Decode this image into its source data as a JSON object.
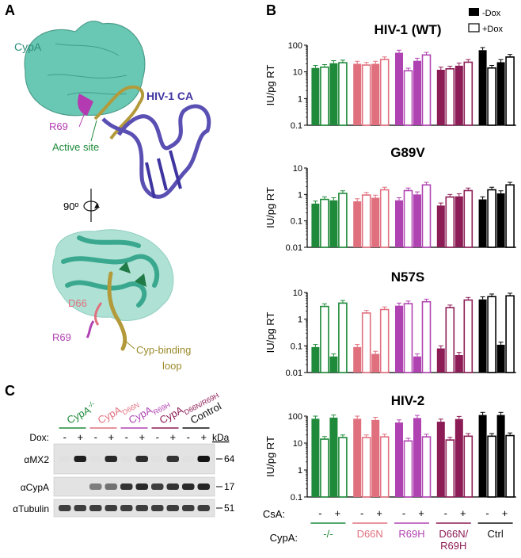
{
  "panels": {
    "a": "A",
    "b": "B",
    "c": "C"
  },
  "structure": {
    "cypa": "CypA",
    "ca": "HIV-1 CA",
    "r69_top": "R69",
    "active_site": "Active site",
    "rotation": "90º",
    "d66": "D66",
    "r69_bottom": "R69",
    "loop_line1": "Cyp-binding",
    "loop_line2": "loop"
  },
  "blot": {
    "groups": [
      {
        "label": "CypA",
        "sup": "-/-",
        "sub": "",
        "color": "#1f8a3a"
      },
      {
        "label": "CypA",
        "sup": "",
        "sub": "D66N",
        "color": "#e0707e"
      },
      {
        "label": "CypA",
        "sup": "",
        "sub": "R69H",
        "color": "#b043b2"
      },
      {
        "label": "CypA",
        "sup": "",
        "sub": "D66N/R69H",
        "color": "#8c1c55"
      },
      {
        "label": "Control",
        "sup": "",
        "sub": "",
        "color": "#111111"
      }
    ],
    "dox_label": "Dox:",
    "dox_signs": [
      "-",
      "+",
      "-",
      "+",
      "-",
      "+",
      "-",
      "+",
      "-",
      "+"
    ],
    "kda_label": "kDa",
    "rows": [
      {
        "label": "αMX2",
        "kda": "64",
        "bands": [
          0.03,
          0.95,
          0.03,
          0.9,
          0.03,
          0.88,
          0.03,
          0.85,
          0.03,
          1.0
        ]
      },
      {
        "label": "αCypA",
        "kda": "17",
        "bands": [
          0.0,
          0.0,
          0.5,
          0.55,
          0.85,
          0.9,
          0.8,
          0.85,
          0.9,
          0.92
        ]
      },
      {
        "label": "αTubulin",
        "kda": "51",
        "bands": [
          0.8,
          0.8,
          0.8,
          0.8,
          0.8,
          0.8,
          0.8,
          0.8,
          0.8,
          0.8
        ]
      }
    ]
  },
  "legend": {
    "minus": "-Dox",
    "plus": "+Dox"
  },
  "axis": {
    "csa_label": "CsA:",
    "cypa_label": "CypA:",
    "csa_signs": [
      "-",
      "+",
      "-",
      "+",
      "-",
      "+",
      "-",
      "+",
      "-",
      "+"
    ]
  },
  "group_labels": [
    {
      "lines": [
        "-/-"
      ],
      "color": "#1f8a3a"
    },
    {
      "lines": [
        "D66N"
      ],
      "color": "#e0707e"
    },
    {
      "lines": [
        "R69H"
      ],
      "color": "#b043b2"
    },
    {
      "lines": [
        "D66N/",
        "R69H"
      ],
      "color": "#8c1c55"
    },
    {
      "lines": [
        "Ctrl"
      ],
      "color": "#111111"
    }
  ],
  "chart_data": [
    {
      "type": "bar",
      "title": "HIV-1 (WT)",
      "ylabel": "IU/pg RT",
      "yscale": "log",
      "ylim": [
        0.1,
        100
      ],
      "yticks": [
        "100",
        "10",
        "1",
        "0.1"
      ],
      "group_colors": [
        "#1f8a3a",
        "#e0707e",
        "#b043b2",
        "#8c1c55",
        "#000000"
      ],
      "bars": [
        {
          "dox": "-",
          "values": [
            14,
            20,
            52,
            12,
            65
          ]
        },
        {
          "dox": "+",
          "values": [
            15,
            18,
            11,
            13,
            14
          ]
        },
        {
          "dox": "-",
          "values": [
            21,
            20,
            26,
            17,
            23
          ]
        },
        {
          "dox": "+",
          "values": [
            22,
            29,
            43,
            23,
            36
          ]
        }
      ]
    },
    {
      "type": "bar",
      "title": "G89V",
      "ylabel": "IU/pg RT",
      "yscale": "log",
      "ylim": [
        0.01,
        10
      ],
      "yticks": [
        "10",
        "1",
        "0.1",
        "0.01"
      ],
      "group_colors": [
        "#1f8a3a",
        "#e0707e",
        "#b043b2",
        "#8c1c55",
        "#000000"
      ],
      "bars": [
        {
          "dox": "-",
          "values": [
            0.45,
            0.55,
            0.6,
            0.38,
            0.65
          ]
        },
        {
          "dox": "+",
          "values": [
            0.65,
            0.95,
            1.4,
            0.8,
            1.5
          ]
        },
        {
          "dox": "-",
          "values": [
            0.6,
            0.75,
            1.0,
            0.85,
            1.1
          ]
        },
        {
          "dox": "+",
          "values": [
            1.1,
            1.5,
            2.3,
            1.4,
            2.3
          ]
        }
      ]
    },
    {
      "type": "bar",
      "title": "N57S",
      "ylabel": "IU/pg RT",
      "yscale": "log",
      "ylim": [
        0.01,
        10
      ],
      "yticks": [
        "10",
        "1",
        "0.1",
        "0.01"
      ],
      "group_colors": [
        "#1f8a3a",
        "#e0707e",
        "#b043b2",
        "#8c1c55",
        "#000000"
      ],
      "bars": [
        {
          "dox": "-",
          "values": [
            0.09,
            0.09,
            3.2,
            0.08,
            5.5
          ]
        },
        {
          "dox": "+",
          "values": [
            3.0,
            1.7,
            3.8,
            2.7,
            7.0
          ]
        },
        {
          "dox": "-",
          "values": [
            0.04,
            0.05,
            0.04,
            0.045,
            0.11
          ]
        },
        {
          "dox": "+",
          "values": [
            4.0,
            2.3,
            4.5,
            5.2,
            7.5
          ]
        }
      ]
    },
    {
      "type": "bar",
      "title": "HIV-2",
      "ylabel": "IU/pg RT",
      "yscale": "log",
      "ylim": [
        0.1,
        100
      ],
      "yticks": [
        "100",
        "10",
        "1",
        "0.1"
      ],
      "group_colors": [
        "#1f8a3a",
        "#e0707e",
        "#b043b2",
        "#8c1c55",
        "#000000"
      ],
      "bars": [
        {
          "dox": "-",
          "values": [
            80,
            80,
            58,
            62,
            110
          ]
        },
        {
          "dox": "+",
          "values": [
            14,
            16,
            12,
            13,
            18
          ]
        },
        {
          "dox": "-",
          "values": [
            88,
            72,
            85,
            78,
            110
          ]
        },
        {
          "dox": "+",
          "values": [
            16,
            17,
            17,
            18,
            19
          ]
        }
      ]
    }
  ]
}
